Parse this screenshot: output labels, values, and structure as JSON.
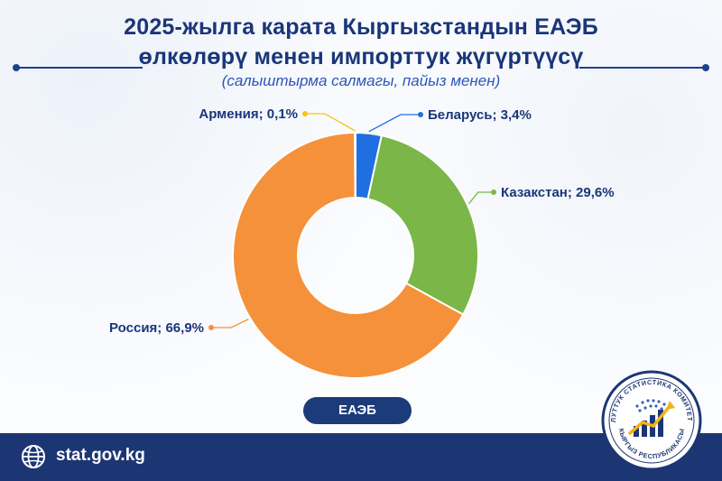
{
  "title": {
    "line1": "2025-жылга карата Кыргызстандын ЕАЭБ",
    "line2": "өлкөлөрү менен импорттук жүгүртүүсү",
    "subtitle": "(салыштырма салмагы, пайыз менен)"
  },
  "chart_data": {
    "type": "pie",
    "donut": true,
    "title": "2025-жылга карата Кыргызстандын ЕАЭБ өлкөлөрү менен импорттук жүгүртүүсү",
    "subtitle": "(салыштырма салмагы, пайыз менен)",
    "center_badge": "ЕАЭБ",
    "slices": [
      {
        "name": "Беларусь",
        "value": 3.4,
        "label": "Беларусь; 3,4%",
        "color": "#1f6fe0"
      },
      {
        "name": "Казакстан",
        "value": 29.6,
        "label": "Казакстан; 29,6%",
        "color": "#7ab648"
      },
      {
        "name": "Россия",
        "value": 66.9,
        "label": "Россия; 66,9%",
        "color": "#f5913a"
      },
      {
        "name": "Армения",
        "value": 0.1,
        "label": "Армения; 0,1%",
        "color": "#f7c21c"
      }
    ],
    "legend": "none"
  },
  "footer": {
    "website": "stat.gov.kg",
    "icon": "globe-icon",
    "background": "#1c3674"
  },
  "logo": {
    "text_top": "УЛУТТУК СТАТИСТИКА КОМИТЕТИ",
    "text_bottom": "КЫРГЫЗ РЕСПУБЛИКАСЫ"
  }
}
